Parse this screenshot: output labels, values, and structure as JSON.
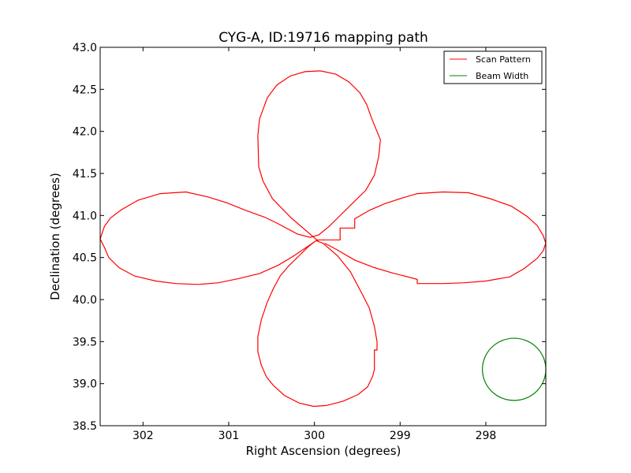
{
  "chart_data": {
    "type": "line",
    "title": "CYG-A, ID:19716 mapping path",
    "xlabel": "Right Ascension (degrees)",
    "ylabel": "Declination (degrees)",
    "xlim": [
      302.5,
      297.3
    ],
    "ylim": [
      38.5,
      43.0
    ],
    "x_reversed": true,
    "grid": false,
    "legend_position": "top-right",
    "xticks": [
      302,
      301,
      300,
      299,
      298
    ],
    "xtick_labels": [
      "302",
      "301",
      "300",
      "299",
      "298"
    ],
    "yticks": [
      38.5,
      39.0,
      39.5,
      40.0,
      40.5,
      41.0,
      41.5,
      42.0,
      42.5,
      43.0
    ],
    "ytick_labels": [
      "38.5",
      "39.0",
      "39.5",
      "40.0",
      "40.5",
      "41.0",
      "41.5",
      "42.0",
      "42.5",
      "43.0"
    ],
    "series": [
      {
        "name": "Scan Pattern",
        "color": "#ff0000",
        "points": [
          [
            299.95,
            40.69
          ],
          [
            300.27,
            40.97
          ],
          [
            300.49,
            41.2
          ],
          [
            300.6,
            41.41
          ],
          [
            300.65,
            41.58
          ],
          [
            300.66,
            41.95
          ],
          [
            300.64,
            42.15
          ],
          [
            300.55,
            42.4
          ],
          [
            300.44,
            42.55
          ],
          [
            300.28,
            42.66
          ],
          [
            300.11,
            42.71
          ],
          [
            299.93,
            42.72
          ],
          [
            299.75,
            42.68
          ],
          [
            299.6,
            42.59
          ],
          [
            299.47,
            42.46
          ],
          [
            299.39,
            42.32
          ],
          [
            299.33,
            42.15
          ],
          [
            299.23,
            41.9
          ],
          [
            299.25,
            41.7
          ],
          [
            299.3,
            41.48
          ],
          [
            299.4,
            41.3
          ],
          [
            299.55,
            41.15
          ],
          [
            299.72,
            40.98
          ],
          [
            299.84,
            40.86
          ],
          [
            299.95,
            40.77
          ],
          [
            300.05,
            40.74
          ],
          [
            300.2,
            40.78
          ],
          [
            300.42,
            40.9
          ],
          [
            300.58,
            40.98
          ],
          [
            300.8,
            41.06
          ],
          [
            301.02,
            41.15
          ],
          [
            301.24,
            41.22
          ],
          [
            301.5,
            41.28
          ],
          [
            301.8,
            41.26
          ],
          [
            302.06,
            41.18
          ],
          [
            302.25,
            41.07
          ],
          [
            302.38,
            40.97
          ],
          [
            302.45,
            40.87
          ],
          [
            302.5,
            40.72
          ],
          [
            302.45,
            40.62
          ],
          [
            302.4,
            40.5
          ],
          [
            302.28,
            40.38
          ],
          [
            302.1,
            40.28
          ],
          [
            301.85,
            40.22
          ],
          [
            301.62,
            40.19
          ],
          [
            301.35,
            40.18
          ],
          [
            301.12,
            40.2
          ],
          [
            300.88,
            40.25
          ],
          [
            300.64,
            40.31
          ],
          [
            300.42,
            40.41
          ],
          [
            300.24,
            40.52
          ],
          [
            300.08,
            40.63
          ],
          [
            299.98,
            40.7
          ],
          [
            299.9,
            40.67
          ],
          [
            299.73,
            40.52
          ],
          [
            299.58,
            40.33
          ],
          [
            299.45,
            40.08
          ],
          [
            299.36,
            39.9
          ],
          [
            299.3,
            39.68
          ],
          [
            299.27,
            39.5
          ],
          [
            299.27,
            39.4
          ],
          [
            299.3,
            39.4
          ],
          [
            299.3,
            39.26
          ],
          [
            299.3,
            39.17
          ],
          [
            299.32,
            39.09
          ],
          [
            299.38,
            38.96
          ],
          [
            299.49,
            38.87
          ],
          [
            299.67,
            38.79
          ],
          [
            299.86,
            38.74
          ],
          [
            300.01,
            38.73
          ],
          [
            300.18,
            38.77
          ],
          [
            300.35,
            38.86
          ],
          [
            300.48,
            38.98
          ],
          [
            300.56,
            39.08
          ],
          [
            300.62,
            39.22
          ],
          [
            300.66,
            39.38
          ],
          [
            300.66,
            39.56
          ],
          [
            300.62,
            39.76
          ],
          [
            300.55,
            39.97
          ],
          [
            300.48,
            40.13
          ],
          [
            300.4,
            40.28
          ],
          [
            300.3,
            40.4
          ],
          [
            300.17,
            40.53
          ],
          [
            300.07,
            40.63
          ],
          [
            299.97,
            40.71
          ],
          [
            299.95,
            40.71
          ],
          [
            299.75,
            40.71
          ],
          [
            299.7,
            40.71
          ],
          [
            299.7,
            40.85
          ],
          [
            299.55,
            40.85
          ],
          [
            299.53,
            40.85
          ],
          [
            299.53,
            40.96
          ],
          [
            299.36,
            41.06
          ],
          [
            299.18,
            41.14
          ],
          [
            299.0,
            41.2
          ],
          [
            298.8,
            41.26
          ],
          [
            298.5,
            41.28
          ],
          [
            298.2,
            41.27
          ],
          [
            297.95,
            41.2
          ],
          [
            297.7,
            41.11
          ],
          [
            297.52,
            40.99
          ],
          [
            297.4,
            40.88
          ],
          [
            297.33,
            40.76
          ],
          [
            297.3,
            40.67
          ],
          [
            297.33,
            40.58
          ],
          [
            297.4,
            40.49
          ],
          [
            297.55,
            40.37
          ],
          [
            297.72,
            40.27
          ],
          [
            298.0,
            40.22
          ],
          [
            298.25,
            40.2
          ],
          [
            298.5,
            40.19
          ],
          [
            298.76,
            40.19
          ],
          [
            298.8,
            40.19
          ],
          [
            298.8,
            40.24
          ],
          [
            299.1,
            40.32
          ],
          [
            299.3,
            40.38
          ],
          [
            299.53,
            40.47
          ],
          [
            299.75,
            40.6
          ],
          [
            299.88,
            40.67
          ]
        ]
      },
      {
        "name": "Beam Width",
        "color": "#008000",
        "shape": "circle",
        "center": [
          297.67,
          39.17
        ],
        "radius": 0.37
      }
    ]
  }
}
